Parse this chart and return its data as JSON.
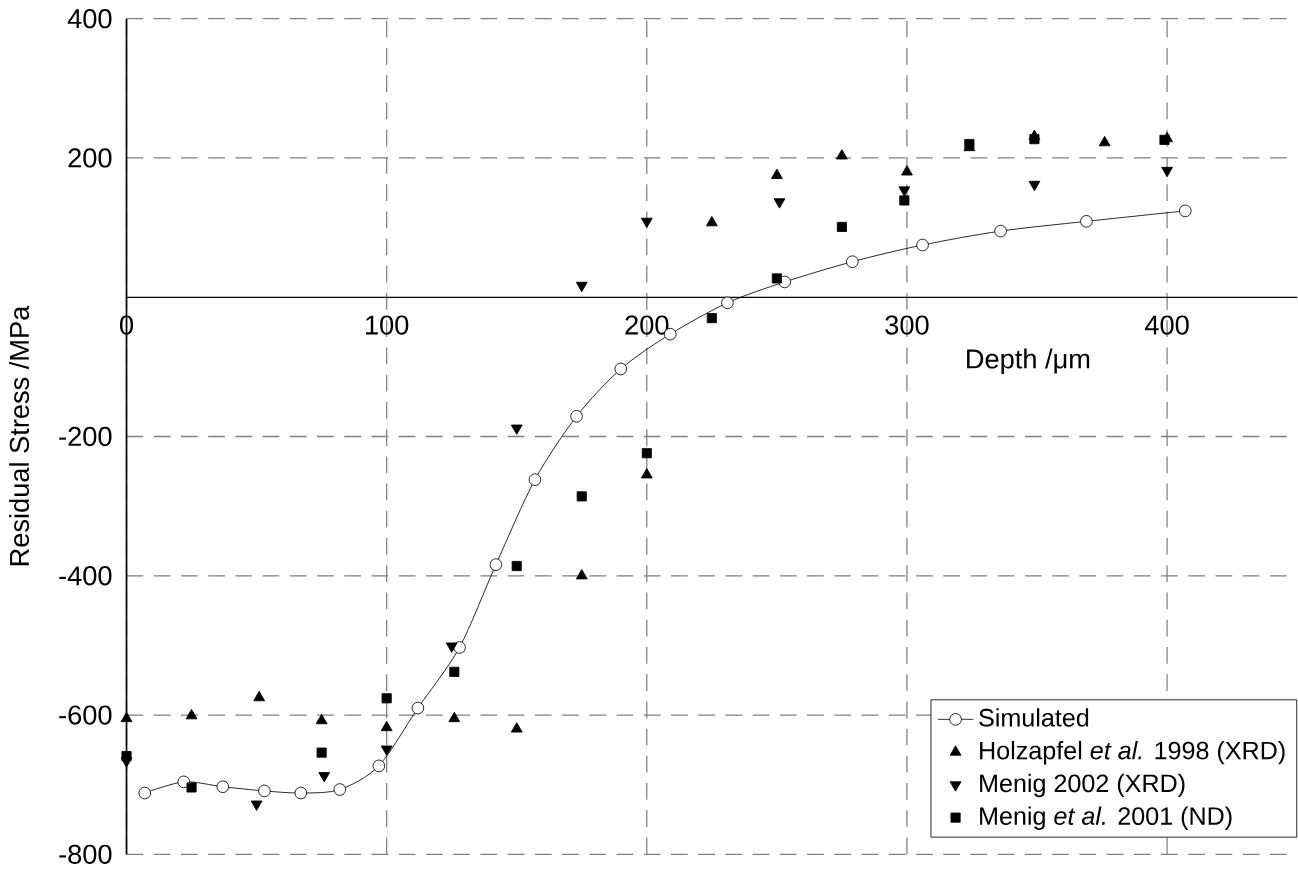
{
  "chart_data": {
    "type": "scatter",
    "xlabel": "Depth /μm",
    "ylabel": "Residual Stress /MPa",
    "xlim": [
      0,
      450
    ],
    "ylim": [
      -800,
      400
    ],
    "xticks": [
      0,
      100,
      200,
      300,
      400
    ],
    "yticks": [
      -800,
      -600,
      -400,
      -200,
      200,
      400
    ],
    "grid": true,
    "legend": "bottom right",
    "series": [
      {
        "name": "Simulated",
        "type": "line",
        "marker": "circle",
        "color": "#000000",
        "x": [
          7,
          22,
          37,
          53,
          67,
          82,
          97,
          112,
          128,
          142,
          157,
          173,
          190,
          209,
          231,
          253,
          279,
          306,
          336,
          369,
          407
        ],
        "values": [
          -712,
          -696,
          -703,
          -709,
          -712,
          -707,
          -673,
          -590,
          -503,
          -384,
          -262,
          -171,
          -103,
          -53,
          -8,
          22,
          51,
          75,
          95,
          109,
          124
        ]
      },
      {
        "name": "Holzapfel *et al.* 1998 (XRD)",
        "type": "scatter",
        "marker": "triangle",
        "color": "#000000",
        "x": [
          0,
          25,
          51,
          75,
          100,
          126,
          150,
          175,
          200,
          225,
          250,
          275,
          300,
          324,
          349,
          376,
          400
        ],
        "values": [
          -605,
          -601,
          -575,
          -608,
          -618,
          -605,
          -620,
          -400,
          -255,
          107,
          175,
          203,
          180,
          215,
          231,
          222,
          228
        ]
      },
      {
        "name": "Menig 2002 (XRD)",
        "type": "scatter",
        "marker": "triangle-down",
        "color": "#000000",
        "x": [
          0,
          50,
          76,
          100,
          125,
          150,
          175,
          200,
          251,
          299,
          349,
          400
        ],
        "values": [
          -666,
          -728,
          -687,
          -649,
          -501,
          -188,
          17,
          109,
          137,
          154,
          162,
          182
        ]
      },
      {
        "name": "Menig *et al.* 2001 (ND)",
        "type": "scatter",
        "marker": "square",
        "color": "#000000",
        "x": [
          0,
          25,
          75,
          100,
          126,
          150,
          175,
          200,
          225,
          250,
          275,
          299,
          324,
          349,
          399
        ],
        "values": [
          -659,
          -704,
          -654,
          -576,
          -538,
          -386,
          -286,
          -224,
          -30,
          27,
          101,
          139,
          220,
          227,
          226
        ]
      }
    ]
  }
}
